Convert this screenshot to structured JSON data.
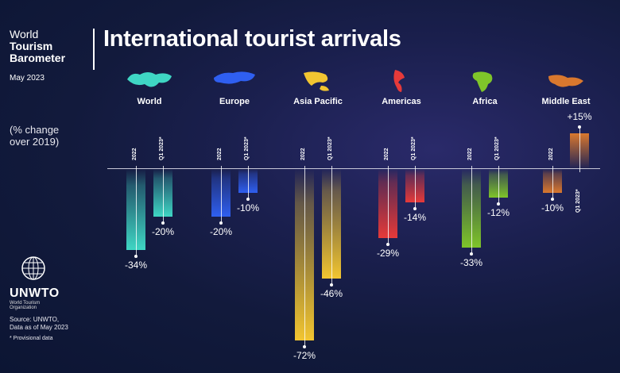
{
  "header": {
    "brand_line1": "World",
    "brand_line2": "Tourism",
    "brand_line3": "Barometer",
    "date": "May 2023",
    "title": "International tourist arrivals",
    "note_line1": "(% change",
    "note_line2": "over 2019)"
  },
  "footer": {
    "logo_name": "UNWTO",
    "logo_sub": "World Tourism Organization",
    "source_line1": "Source: UNWTO,",
    "source_line2": "Data as of May 2023",
    "provisional": "*   Provisional data"
  },
  "chart_data": {
    "type": "bar",
    "title": "International tourist arrivals",
    "subtitle": "(% change over 2019)",
    "categories": [
      "World",
      "Europe",
      "Asia Pacific",
      "Americas",
      "Africa",
      "Middle East"
    ],
    "series": [
      {
        "name": "2022",
        "values": [
          -34,
          -20,
          -72,
          -29,
          -33,
          -10
        ]
      },
      {
        "name": "Q1 2023*",
        "values": [
          -20,
          -10,
          -46,
          -14,
          -12,
          15
        ]
      }
    ],
    "value_labels": {
      "2022": [
        "-34%",
        "-20%",
        "-72%",
        "-29%",
        "-33%",
        "-10%"
      ],
      "Q1 2023*": [
        "-20%",
        "-10%",
        "-46%",
        "-14%",
        "-12%",
        "+15%"
      ]
    },
    "colors": [
      "#3fd6c4",
      "#2f5ff0",
      "#f2c531",
      "#e63a3a",
      "#7fc52a",
      "#d9782e"
    ],
    "xlabel": "",
    "ylabel": "% change over 2019",
    "grid": false,
    "legend": "none (series labels rotated above bars)"
  }
}
